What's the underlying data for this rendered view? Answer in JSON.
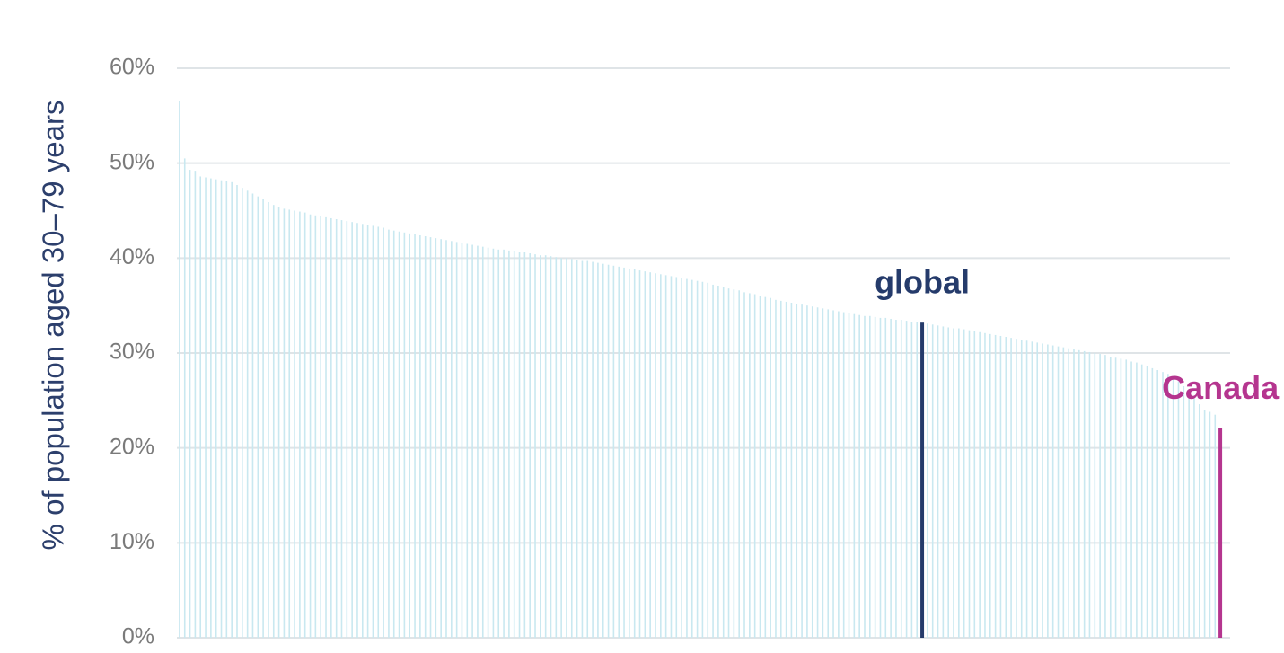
{
  "chart_data": {
    "type": "bar",
    "y_label": "% of population aged 30–79 years",
    "categories": [
      null,
      null,
      null,
      null,
      null,
      null,
      null,
      null,
      null,
      null,
      null,
      null,
      null,
      null,
      null,
      null,
      null,
      null,
      null,
      null,
      null,
      null,
      null,
      null,
      null,
      null,
      null,
      null,
      null,
      null,
      null,
      null,
      null,
      null,
      null,
      null,
      null,
      null,
      null,
      null,
      null,
      null,
      null,
      null,
      null,
      null,
      null,
      null,
      null,
      null,
      null,
      null,
      null,
      null,
      null,
      null,
      null,
      null,
      null,
      null,
      null,
      null,
      null,
      null,
      null,
      null,
      null,
      null,
      null,
      null,
      null,
      null,
      null,
      null,
      null,
      null,
      null,
      null,
      null,
      null,
      null,
      null,
      null,
      null,
      null,
      null,
      null,
      null,
      null,
      null,
      null,
      null,
      null,
      null,
      null,
      null,
      null,
      null,
      null,
      null,
      null,
      null,
      null,
      null,
      null,
      null,
      null,
      null,
      null,
      null,
      null,
      null,
      null,
      null,
      null,
      null,
      null,
      null,
      null,
      null,
      null,
      null,
      null,
      null,
      null,
      null,
      null,
      null,
      null,
      null,
      null,
      null,
      null,
      null,
      null,
      null,
      null,
      null,
      null,
      null,
      null,
      null,
      "global",
      null,
      null,
      null,
      null,
      null,
      null,
      null,
      null,
      null,
      null,
      null,
      null,
      null,
      null,
      null,
      null,
      null,
      null,
      null,
      null,
      null,
      null,
      null,
      null,
      null,
      null,
      null,
      null,
      null,
      null,
      null,
      null,
      null,
      null,
      null,
      null,
      null,
      null,
      null,
      null,
      null,
      null,
      null,
      null,
      null,
      null,
      null,
      null,
      null,
      null,
      null,
      null,
      null,
      null,
      null,
      null,
      "Canada"
    ],
    "values": [
      56.5,
      50.5,
      49.3,
      49.2,
      48.6,
      48.5,
      48.4,
      48.3,
      48.2,
      48.1,
      48.0,
      47.7,
      47.4,
      47.1,
      46.8,
      46.5,
      46.2,
      45.9,
      45.6,
      45.4,
      45.2,
      45.1,
      45.0,
      44.9,
      44.8,
      44.6,
      44.5,
      44.4,
      44.3,
      44.2,
      44.1,
      44.0,
      43.9,
      43.8,
      43.7,
      43.6,
      43.5,
      43.4,
      43.3,
      43.2,
      43.0,
      42.9,
      42.8,
      42.7,
      42.6,
      42.5,
      42.4,
      42.3,
      42.2,
      42.1,
      42.0,
      41.9,
      41.8,
      41.7,
      41.6,
      41.5,
      41.4,
      41.3,
      41.2,
      41.1,
      41.0,
      40.9,
      40.9,
      40.8,
      40.7,
      40.6,
      40.6,
      40.5,
      40.4,
      40.3,
      40.3,
      40.2,
      40.1,
      40.0,
      40.0,
      39.9,
      39.8,
      39.7,
      39.7,
      39.6,
      39.5,
      39.4,
      39.3,
      39.2,
      39.1,
      39.0,
      38.9,
      38.8,
      38.7,
      38.6,
      38.5,
      38.4,
      38.3,
      38.2,
      38.1,
      38.0,
      37.9,
      37.8,
      37.7,
      37.6,
      37.5,
      37.4,
      37.2,
      37.1,
      37.0,
      36.8,
      36.7,
      36.6,
      36.4,
      36.3,
      36.2,
      36.0,
      35.9,
      35.8,
      35.6,
      35.5,
      35.4,
      35.3,
      35.2,
      35.1,
      35.0,
      34.9,
      34.8,
      34.7,
      34.6,
      34.5,
      34.4,
      34.3,
      34.2,
      34.1,
      34.0,
      33.9,
      33.9,
      33.8,
      33.7,
      33.7,
      33.6,
      33.5,
      33.5,
      33.4,
      33.3,
      33.3,
      33.2,
      33.1,
      33.0,
      32.9,
      32.8,
      32.7,
      32.6,
      32.6,
      32.5,
      32.4,
      32.3,
      32.2,
      32.1,
      32.0,
      31.9,
      31.8,
      31.7,
      31.6,
      31.5,
      31.4,
      31.3,
      31.2,
      31.1,
      31.0,
      30.9,
      30.8,
      30.7,
      30.6,
      30.5,
      30.4,
      30.3,
      30.2,
      30.1,
      30.0,
      29.9,
      29.8,
      29.6,
      29.5,
      29.4,
      29.3,
      29.1,
      29.0,
      28.8,
      28.6,
      28.4,
      28.2,
      28.0,
      27.8,
      27.5,
      27.0,
      26.5,
      25.8,
      25.2,
      24.6,
      24.0,
      23.8,
      23.5,
      22.1
    ],
    "color": "#c9e8f0",
    "highlight_colors": {
      "global": "#253b6b",
      "Canada": "#b5358f"
    },
    "ylim": [
      0,
      60
    ],
    "yticks": [
      {
        "value": 0,
        "label": "0%"
      },
      {
        "value": 10,
        "label": "10%"
      },
      {
        "value": 20,
        "label": "20%"
      },
      {
        "value": 30,
        "label": "30%"
      },
      {
        "value": 40,
        "label": "40%"
      },
      {
        "value": 50,
        "label": "50%"
      },
      {
        "value": 60,
        "label": "60%"
      }
    ],
    "grid": true
  }
}
